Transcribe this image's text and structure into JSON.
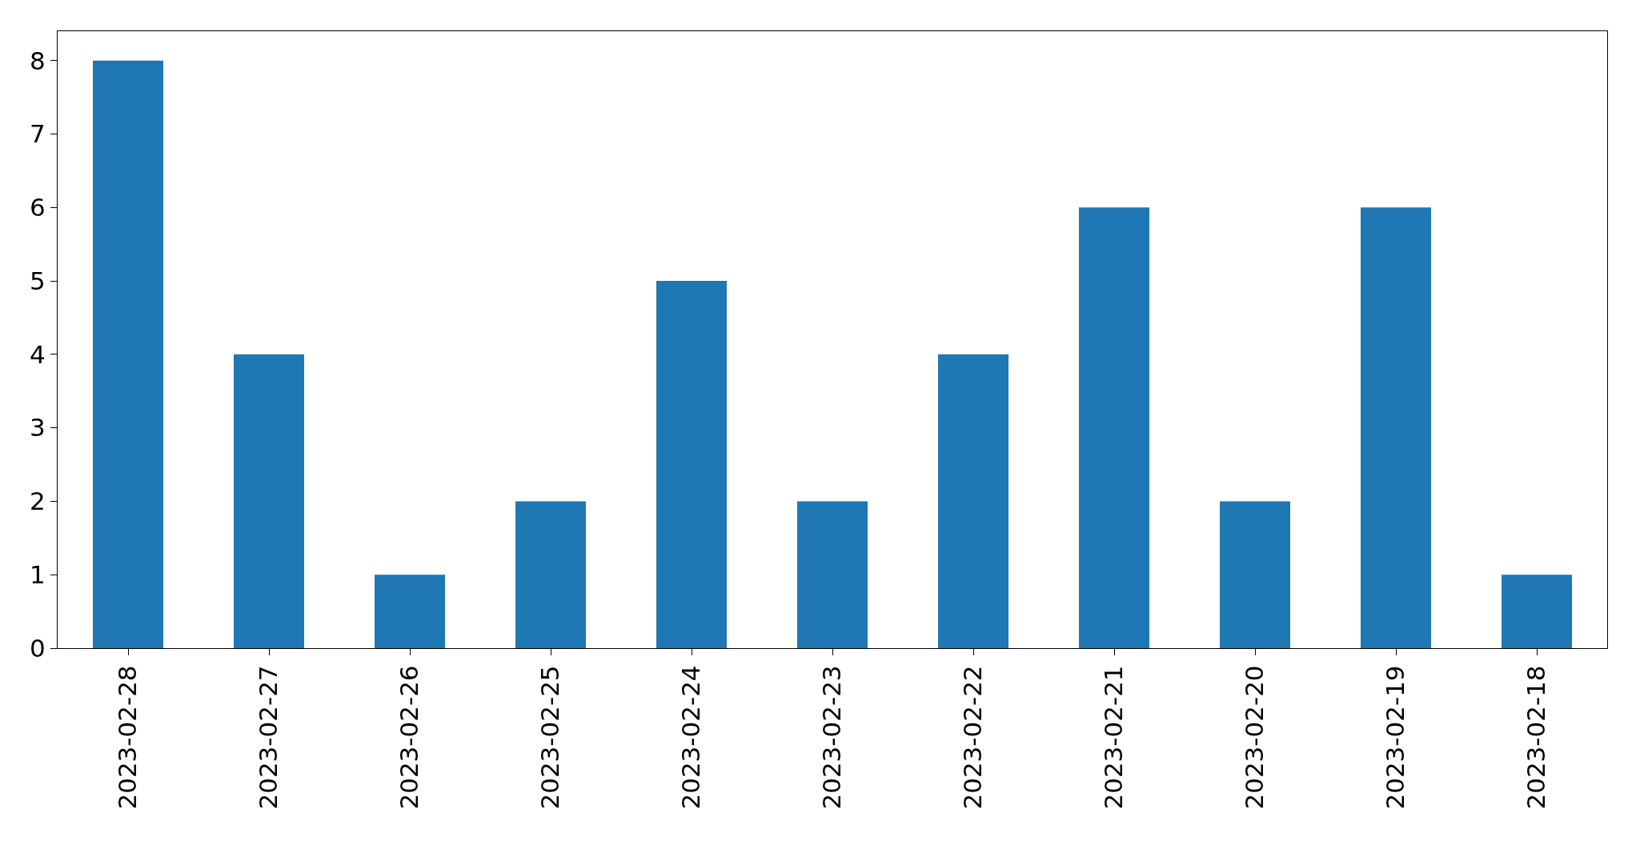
{
  "chart_data": {
    "type": "bar",
    "categories": [
      "2023-02-28",
      "2023-02-27",
      "2023-02-26",
      "2023-02-25",
      "2023-02-24",
      "2023-02-23",
      "2023-02-22",
      "2023-02-21",
      "2023-02-20",
      "2023-02-19",
      "2023-02-18"
    ],
    "values": [
      8,
      4,
      1,
      2,
      5,
      2,
      4,
      6,
      2,
      6,
      1
    ],
    "color": "#1f77b4",
    "ylim": [
      0,
      8.4
    ],
    "yticks": [
      0,
      1,
      2,
      3,
      4,
      5,
      6,
      7,
      8
    ]
  }
}
